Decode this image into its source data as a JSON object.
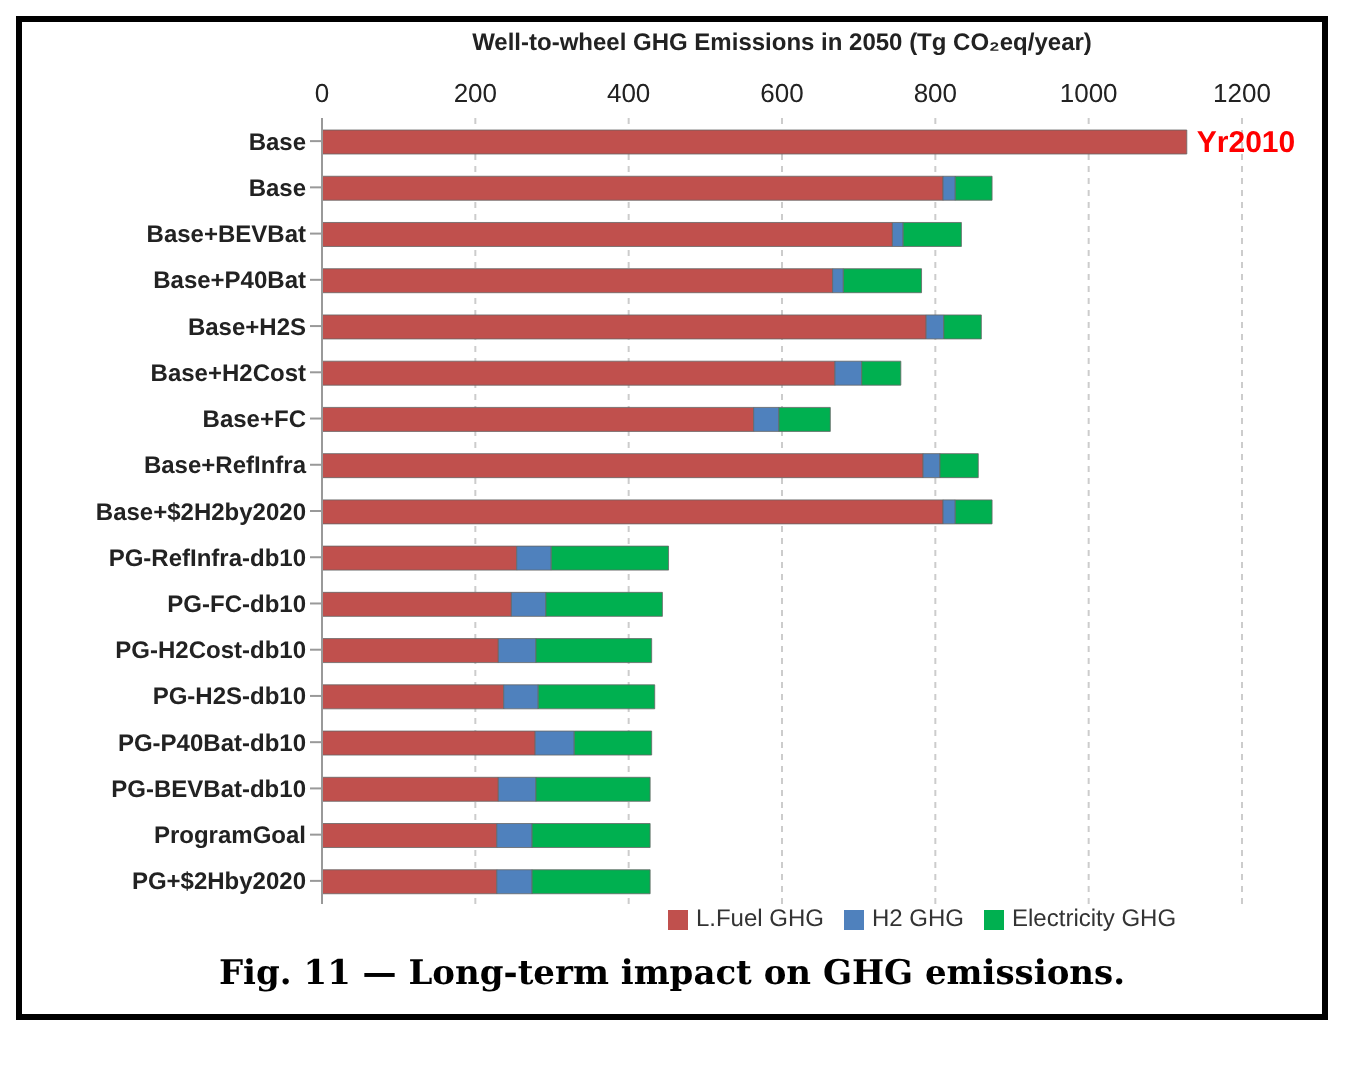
{
  "chart_data": {
    "type": "bar",
    "orientation": "horizontal",
    "stacked": true,
    "xlabel": "Well-to-wheel GHG Emissions in 2050 (Tg CO₂eq/year)",
    "categories": [
      "Base",
      "Base",
      "Base+BEVBat",
      "Base+P40Bat",
      "Base+H2S",
      "Base+H2Cost",
      "Base+FC",
      "Base+RefInfra",
      "Base+$2H2by2020",
      "PG-RefInfra-db10",
      "PG-FC-db10",
      "PG-H2Cost-db10",
      "PG-H2S-db10",
      "PG-P40Bat-db10",
      "PG-BEVBat-db10",
      "ProgramGoal",
      "PG+$2Hby2020"
    ],
    "series": [
      {
        "name": "L.Fuel GHG",
        "color": "#c0504d",
        "values": [
          1128,
          810,
          744,
          666,
          788,
          669,
          563,
          784,
          810,
          254,
          247,
          230,
          237,
          278,
          230,
          228,
          228
        ]
      },
      {
        "name": "H2 GHG",
        "color": "#4f81bd",
        "values": [
          null,
          16,
          14,
          14,
          23,
          35,
          33,
          22,
          16,
          45,
          45,
          49,
          45,
          51,
          49,
          46,
          46
        ]
      },
      {
        "name": "Electricity GHG",
        "color": "#00b050",
        "values": [
          null,
          48,
          76,
          102,
          49,
          51,
          67,
          50,
          48,
          153,
          152,
          151,
          152,
          101,
          149,
          154,
          154
        ]
      }
    ],
    "xlim": [
      0,
      1200
    ],
    "xticks": [
      0,
      200,
      400,
      600,
      800,
      1000,
      1200
    ],
    "grid": "x",
    "legend": "bottom",
    "annotations": [
      {
        "text": "Yr2010",
        "x": 1128,
        "y": "Base"
      },
      "Fig. 11 — Long-term impact on GHG emissions."
    ]
  }
}
